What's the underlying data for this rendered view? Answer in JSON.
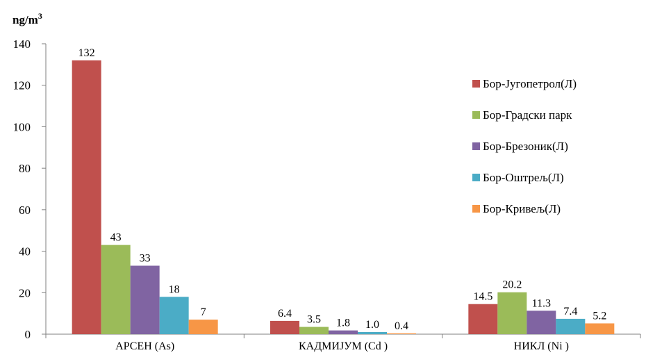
{
  "chart_data": {
    "type": "bar",
    "ylabel": "ng/m",
    "ylabel_sup": "3",
    "ylim": [
      0,
      140
    ],
    "yticks": [
      0,
      20,
      40,
      60,
      80,
      100,
      120,
      140
    ],
    "categories": [
      "АРСЕН  (As)",
      "КАДМИЈУМ  (Cd )",
      "НИКЛ  (Ni )"
    ],
    "series": [
      {
        "name": "Бор-Југопетрол(Л)",
        "color": "#C0504D",
        "values": [
          132,
          6.4,
          14.5
        ],
        "labels": [
          "132",
          "6.4",
          "14.5"
        ]
      },
      {
        "name": "Бор-Градски  парк",
        "color": "#9BBB59",
        "values": [
          43,
          3.5,
          20.2
        ],
        "labels": [
          "43",
          "3.5",
          "20.2"
        ]
      },
      {
        "name": "Бор-Брезоник(Л)",
        "color": "#8064A2",
        "values": [
          33,
          1.8,
          11.3
        ],
        "labels": [
          "33",
          "1.8",
          "11.3"
        ]
      },
      {
        "name": "Бор-Оштрељ(Л)",
        "color": "#4BACC6",
        "values": [
          18,
          1.0,
          7.4
        ],
        "labels": [
          "18",
          "1.0",
          "7.4"
        ]
      },
      {
        "name": "Бор-Кривељ(Л)",
        "color": "#F79646",
        "values": [
          7,
          0.4,
          5.2
        ],
        "labels": [
          "7",
          "0.4",
          "5.2"
        ]
      }
    ],
    "grid": false,
    "legend_position": "right"
  }
}
